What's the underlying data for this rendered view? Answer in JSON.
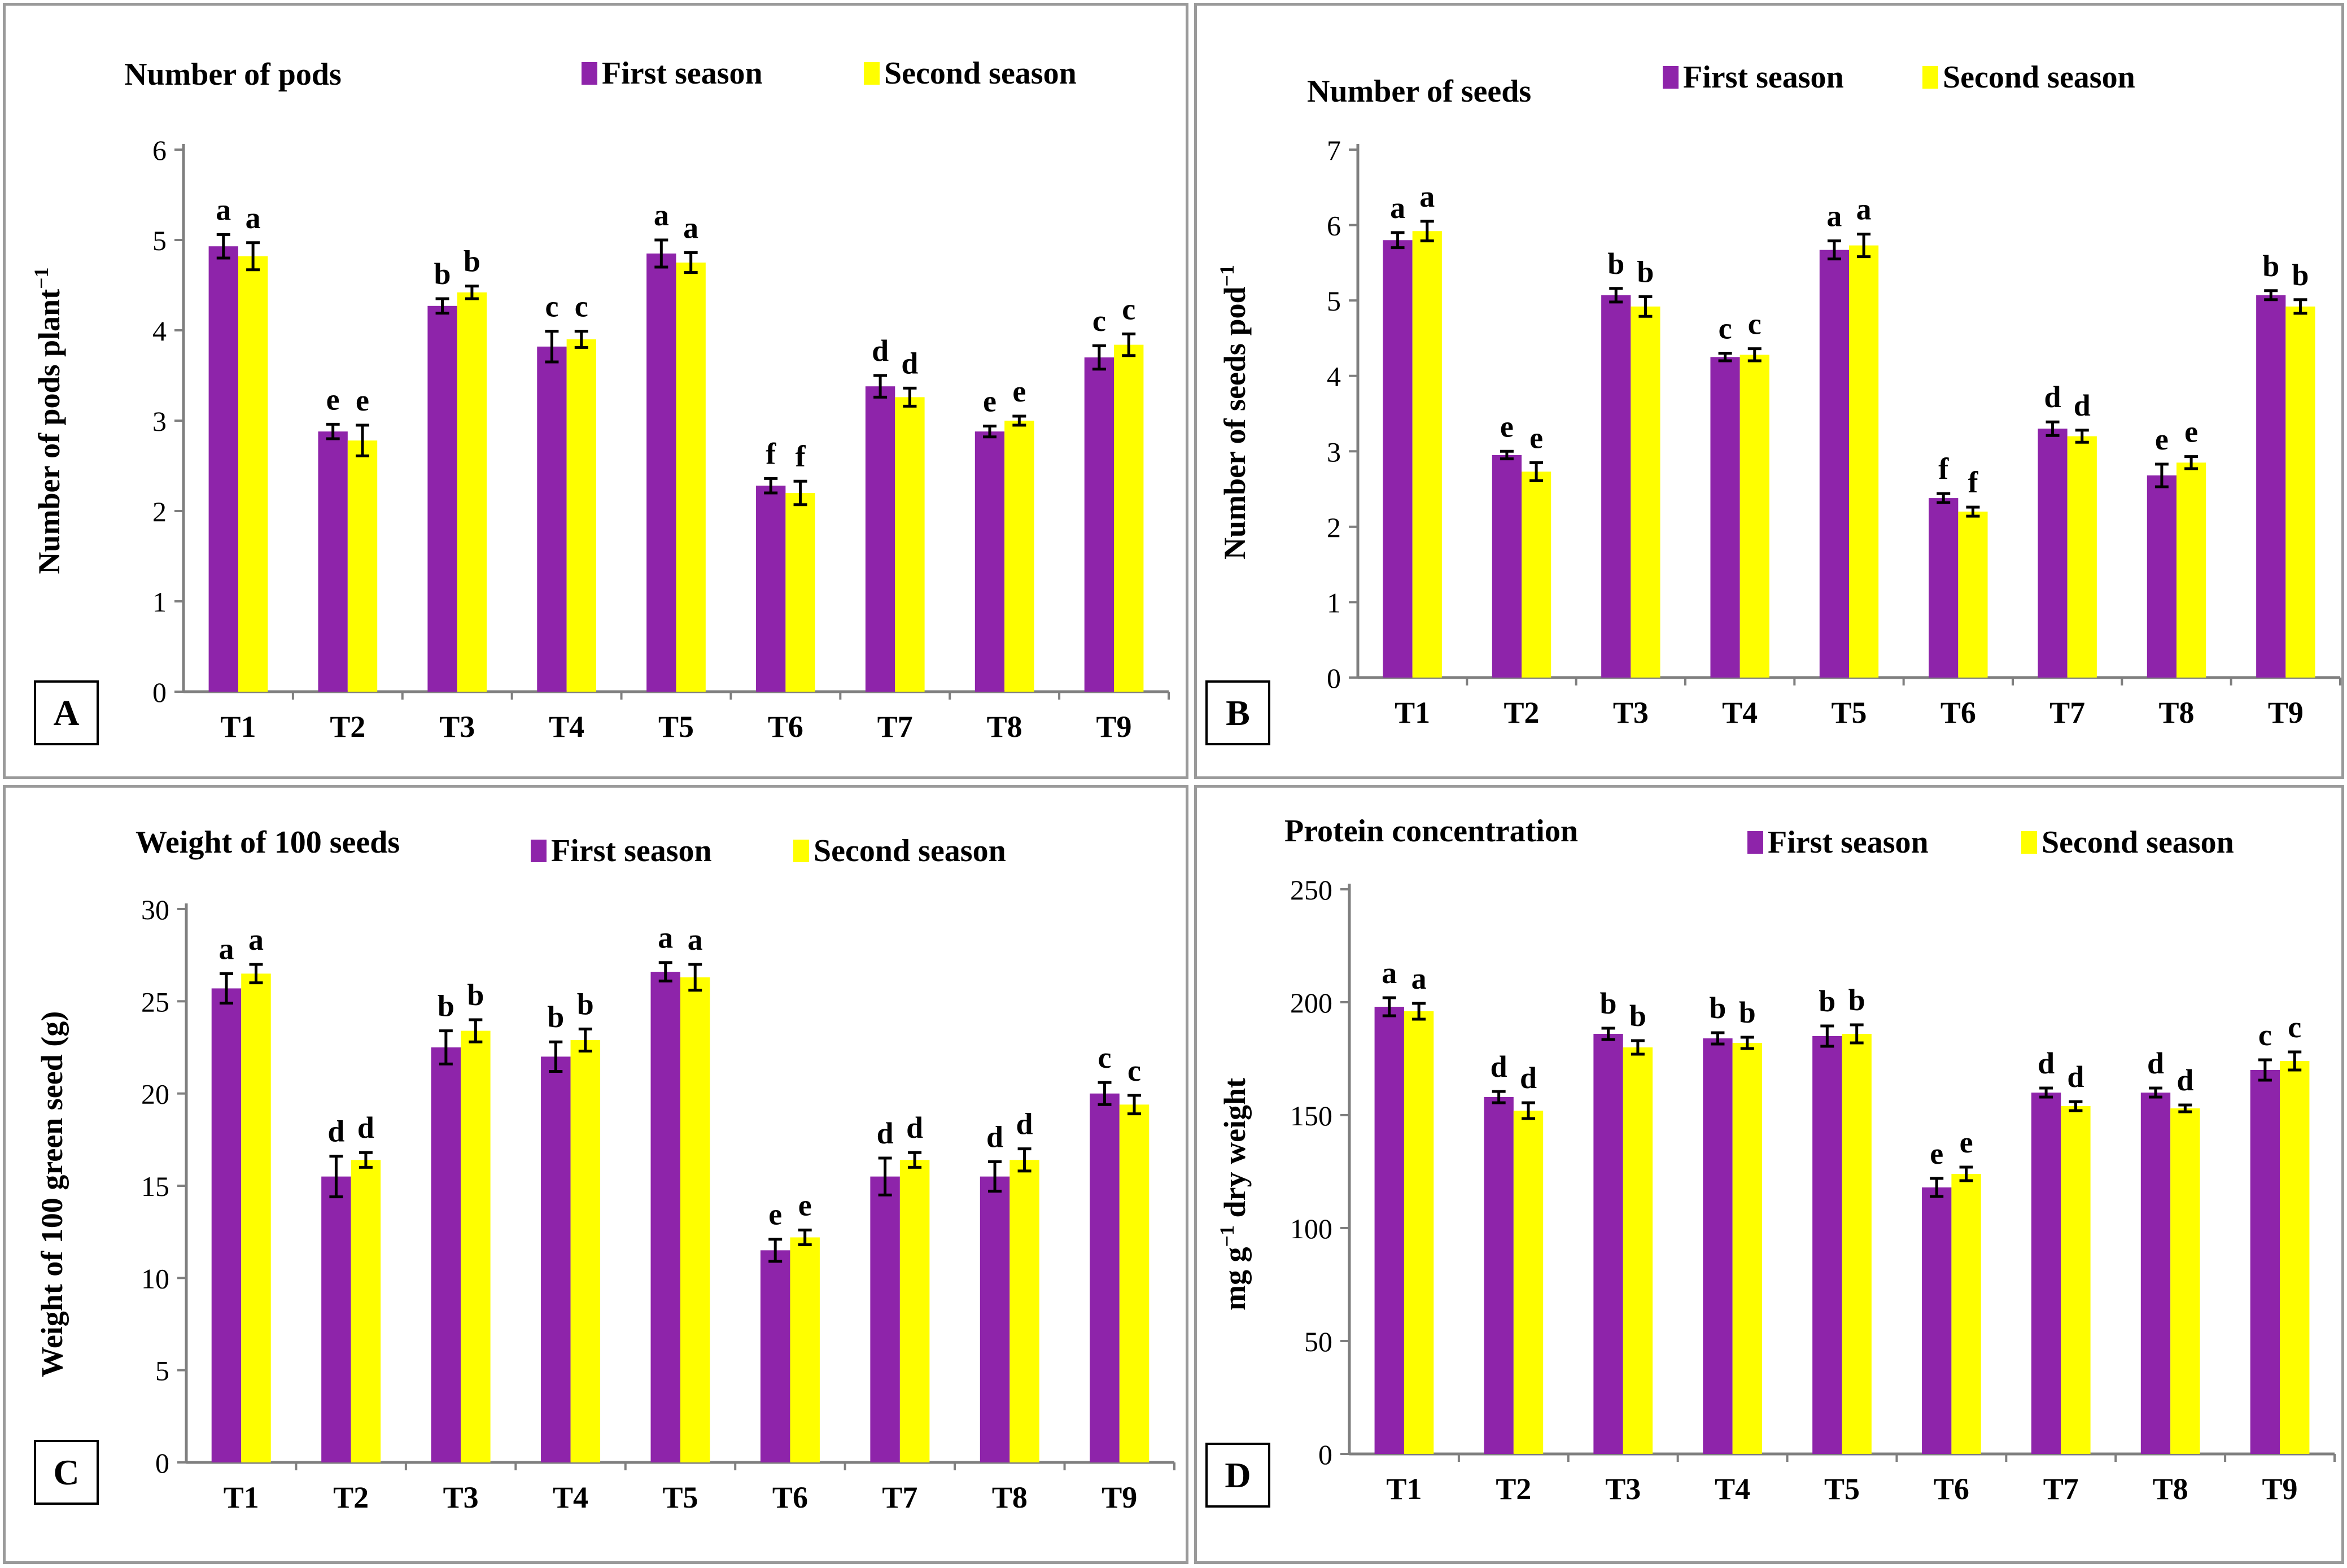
{
  "colors": {
    "first": "#8E24AA",
    "second": "#FFFF00",
    "axis": "#7f7f7f",
    "border": "#9a9a9a",
    "text": "#000000"
  },
  "legend": {
    "first": "First season",
    "second": "Second season"
  },
  "chart_data": [
    {
      "type": "bar",
      "panel_label": "A",
      "title": "Number of pods",
      "xlabel": "",
      "ylabel": "Number of pods plant",
      "ylabel_sup": "−1",
      "ylim": [
        0,
        6
      ],
      "yticks": [
        0,
        1,
        2,
        3,
        4,
        5,
        6
      ],
      "categories": [
        "T1",
        "T2",
        "T3",
        "T4",
        "T5",
        "T6",
        "T7",
        "T8",
        "T9"
      ],
      "series": [
        {
          "name": "First season",
          "values": [
            4.93,
            2.88,
            4.27,
            3.82,
            4.85,
            2.28,
            3.38,
            2.88,
            3.7
          ],
          "errors": [
            0.13,
            0.08,
            0.08,
            0.17,
            0.15,
            0.08,
            0.12,
            0.06,
            0.13
          ],
          "letters": [
            "a",
            "e",
            "b",
            "c",
            "a",
            "f",
            "d",
            "e",
            "c"
          ]
        },
        {
          "name": "Second season",
          "values": [
            4.82,
            2.78,
            4.42,
            3.9,
            4.75,
            2.2,
            3.26,
            3.0,
            3.84
          ],
          "errors": [
            0.15,
            0.17,
            0.07,
            0.09,
            0.11,
            0.13,
            0.1,
            0.05,
            0.12
          ],
          "letters": [
            "a",
            "e",
            "b",
            "c",
            "a",
            "f",
            "d",
            "e",
            "c"
          ]
        }
      ]
    },
    {
      "type": "bar",
      "panel_label": "B",
      "title": "Number of seeds",
      "xlabel": "",
      "ylabel": "Number of seeds pod",
      "ylabel_sup": "−1",
      "ylim": [
        0,
        7
      ],
      "yticks": [
        0,
        1,
        2,
        3,
        4,
        5,
        6,
        7
      ],
      "categories": [
        "T1",
        "T2",
        "T3",
        "T4",
        "T5",
        "T6",
        "T7",
        "T8",
        "T9"
      ],
      "series": [
        {
          "name": "First season",
          "values": [
            5.8,
            2.95,
            5.07,
            4.25,
            5.67,
            2.38,
            3.3,
            2.68,
            5.07
          ],
          "errors": [
            0.1,
            0.05,
            0.09,
            0.05,
            0.12,
            0.06,
            0.09,
            0.15,
            0.06
          ],
          "letters": [
            "a",
            "e",
            "b",
            "c",
            "a",
            "f",
            "d",
            "e",
            "b"
          ]
        },
        {
          "name": "Second season",
          "values": [
            5.92,
            2.73,
            4.92,
            4.28,
            5.73,
            2.2,
            3.2,
            2.85,
            4.92
          ],
          "errors": [
            0.13,
            0.12,
            0.13,
            0.08,
            0.15,
            0.06,
            0.08,
            0.08,
            0.09
          ],
          "letters": [
            "a",
            "e",
            "b",
            "c",
            "a",
            "f",
            "d",
            "e",
            "b"
          ]
        }
      ]
    },
    {
      "type": "bar",
      "panel_label": "C",
      "title": "Weight of 100 seeds",
      "xlabel": "",
      "ylabel": "Weight of 100 green seed (g)",
      "ylabel_sup": "",
      "ylim": [
        0,
        30
      ],
      "yticks": [
        0,
        5,
        10,
        15,
        20,
        25,
        30
      ],
      "categories": [
        "T1",
        "T2",
        "T3",
        "T4",
        "T5",
        "T6",
        "T7",
        "T8",
        "T9"
      ],
      "series": [
        {
          "name": "First season",
          "values": [
            25.7,
            15.5,
            22.5,
            22.0,
            26.6,
            11.5,
            15.5,
            15.5,
            20.0
          ],
          "errors": [
            0.8,
            1.1,
            0.9,
            0.8,
            0.5,
            0.6,
            1.0,
            0.8,
            0.6
          ],
          "letters": [
            "a",
            "d",
            "b",
            "b",
            "a",
            "e",
            "d",
            "d",
            "c"
          ]
        },
        {
          "name": "Second season",
          "values": [
            26.5,
            16.4,
            23.4,
            22.9,
            26.3,
            12.2,
            16.4,
            16.4,
            19.4
          ],
          "errors": [
            0.5,
            0.4,
            0.6,
            0.6,
            0.7,
            0.4,
            0.4,
            0.6,
            0.5
          ],
          "letters": [
            "a",
            "d",
            "b",
            "b",
            "a",
            "e",
            "d",
            "d",
            "c"
          ]
        }
      ]
    },
    {
      "type": "bar",
      "panel_label": "D",
      "title": "Protein concentration",
      "xlabel": "",
      "ylabel": "mg g",
      "ylabel_sup": "−1",
      "ylabel_tail": " dry weight",
      "ylim": [
        0,
        250
      ],
      "yticks": [
        0,
        50,
        100,
        150,
        200,
        250
      ],
      "categories": [
        "T1",
        "T2",
        "T3",
        "T4",
        "T5",
        "T6",
        "T7",
        "T8",
        "T9"
      ],
      "series": [
        {
          "name": "First season",
          "values": [
            198,
            158,
            186,
            184,
            185,
            118,
            160,
            160,
            170
          ],
          "errors": [
            4,
            2.5,
            2.5,
            2.5,
            4.5,
            4,
            2,
            2,
            4.5
          ],
          "letters": [
            "a",
            "d",
            "b",
            "b",
            "b",
            "e",
            "d",
            "d",
            "c"
          ]
        },
        {
          "name": "Second season",
          "values": [
            196,
            152,
            180,
            182,
            186,
            124,
            154,
            153,
            174
          ],
          "errors": [
            3.5,
            3.5,
            3,
            2.5,
            4,
            3,
            2,
            1.5,
            4
          ],
          "letters": [
            "a",
            "d",
            "b",
            "b",
            "b",
            "e",
            "d",
            "d",
            "c"
          ]
        }
      ]
    }
  ]
}
